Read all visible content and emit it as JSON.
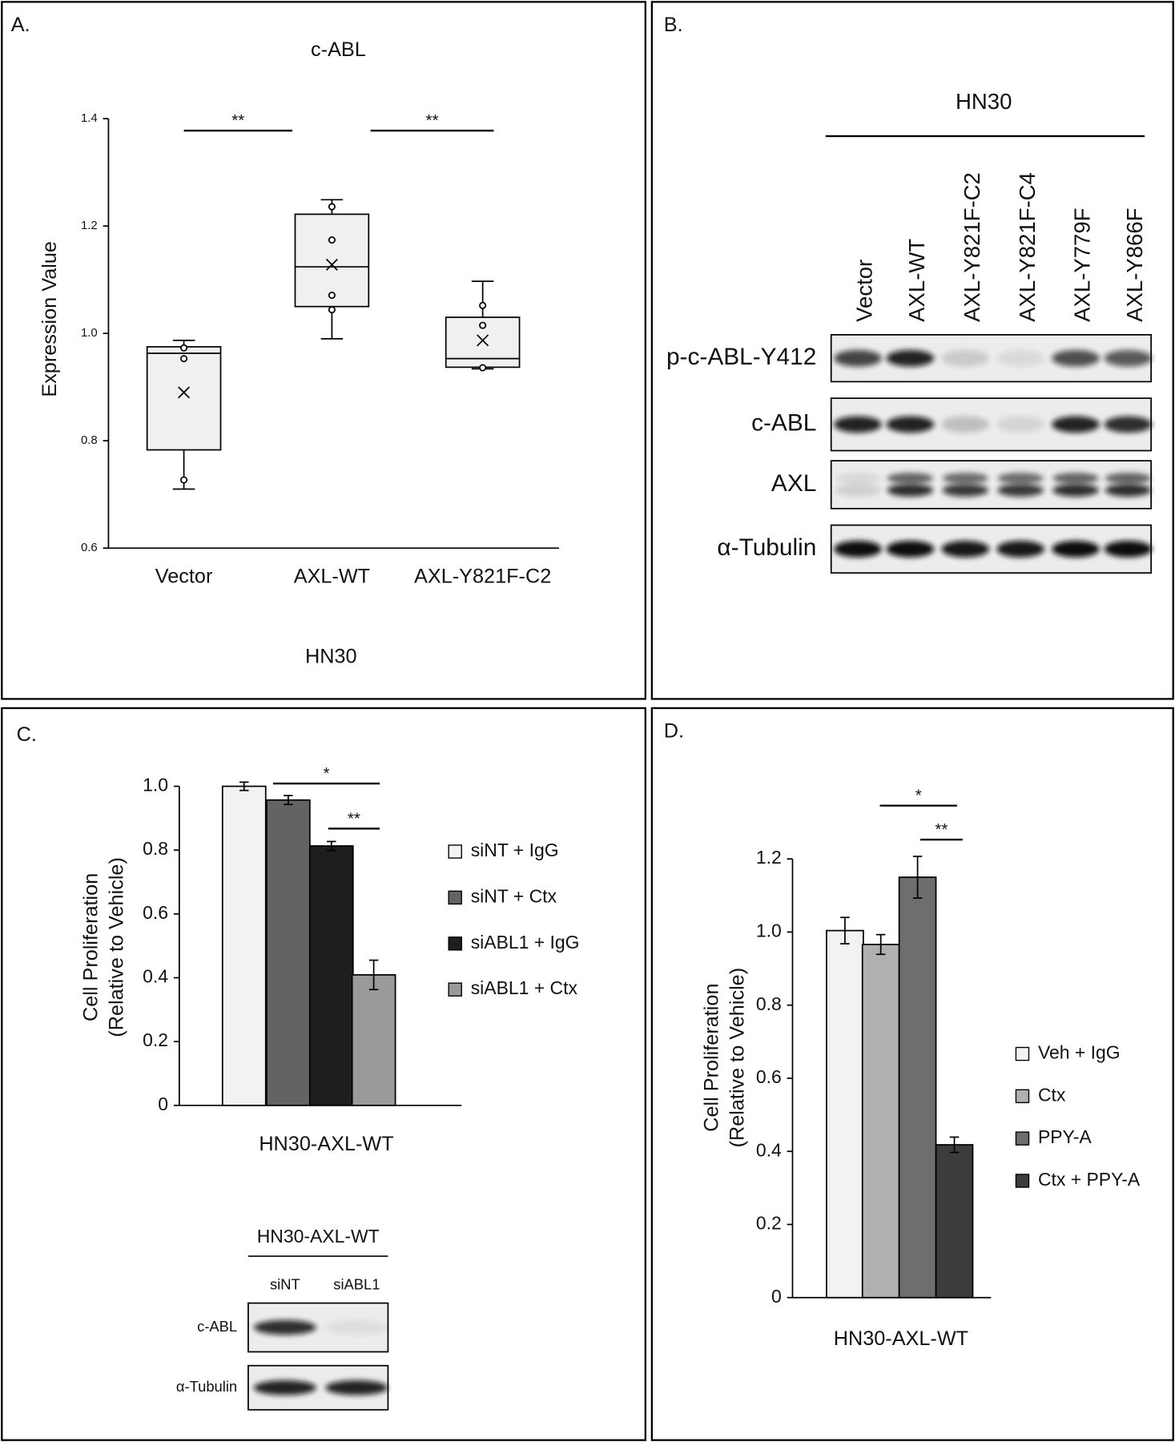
{
  "chart_data": [
    {
      "type": "box",
      "panel": "A.",
      "title": "c-ABL",
      "xlabel": "HN30",
      "ylabel": "Expression Value",
      "categories": [
        "Vector",
        "AXL-WT",
        "AXL-Y821F-C2"
      ],
      "color": "#f0f0f0",
      "boxes": [
        {
          "whisker_low": 0.71,
          "q1": 0.783,
          "median": 0.963,
          "q3": 0.975,
          "whisker_high": 0.987,
          "mean": 0.89,
          "points": [
            0.973,
            0.953,
            0.727
          ]
        },
        {
          "whisker_low": 0.99,
          "q1": 1.05,
          "median": 1.124,
          "q3": 1.222,
          "whisker_high": 1.249,
          "mean": 1.128,
          "points": [
            1.236,
            1.174,
            1.071,
            1.044
          ]
        },
        {
          "whisker_low": 0.934,
          "q1": 0.937,
          "median": 0.953,
          "q3": 1.03,
          "whisker_high": 1.097,
          "mean": 0.987,
          "points": [
            1.052,
            1.015,
            0.936
          ]
        }
      ],
      "ylim": [
        0.6,
        1.4
      ],
      "yticks": [
        0.6,
        0.8,
        {
          "value": 1,
          "label": "1.0"
        },
        1.2,
        1.4
      ],
      "annotations": [
        "**",
        "**"
      ]
    },
    {
      "type": "bar",
      "panel": "C.",
      "xlabel": "HN30-AXL-WT",
      "ylabel": [
        "Cell Proliferation",
        "(Relative to Vehicle)"
      ],
      "series": [
        {
          "name": "siNT + IgG",
          "color": "#f2f2f2",
          "values": [
            1.0
          ],
          "errors": [
            0.013
          ]
        },
        {
          "name": "siNT + Ctx",
          "color": "#636363",
          "values": [
            0.957
          ],
          "errors": [
            0.014
          ]
        },
        {
          "name": "siABL1 + IgG",
          "color": "#1e1e1e",
          "values": [
            0.813
          ],
          "errors": [
            0.014
          ]
        },
        {
          "name": "siABL1 + Ctx",
          "color": "#9a9a9a",
          "values": [
            0.409
          ],
          "errors": [
            0.046
          ]
        }
      ],
      "ylim": [
        0,
        1
      ],
      "yticks": [
        0,
        0.2,
        0.4,
        0.6,
        0.8,
        {
          "value": 1,
          "label": "1.0"
        }
      ],
      "annotations": [
        "*",
        "**"
      ]
    },
    {
      "type": "bar",
      "panel": "D.",
      "xlabel": "HN30-AXL-WT",
      "ylabel": [
        "Cell Proliferation",
        "(Relative to Vehicle)"
      ],
      "series": [
        {
          "name": "Veh + IgG",
          "color": "#f2f2f2",
          "values": [
            1.004
          ],
          "errors": [
            0.036
          ]
        },
        {
          "name": "Ctx",
          "color": "#b0b0b0",
          "values": [
            0.966
          ],
          "errors": [
            0.027
          ]
        },
        {
          "name": "PPY-A",
          "color": "#6e6e6e",
          "values": [
            1.15
          ],
          "errors": [
            0.057
          ]
        },
        {
          "name": "Ctx + PPY-A",
          "color": "#3c3c3c",
          "values": [
            0.418
          ],
          "errors": [
            0.021
          ]
        }
      ],
      "ylim": [
        0,
        1.2
      ],
      "yticks": [
        0,
        0.2,
        0.4,
        0.6,
        0.8,
        {
          "value": 1,
          "label": "1.0"
        },
        1.2
      ],
      "annotations": [
        "*",
        "**"
      ]
    }
  ],
  "blots": [
    {
      "panel": "B.",
      "title": "HN30",
      "lanes": [
        "Vector",
        "AXL-WT",
        "AXL-Y821F-C2",
        "AXL-Y821F-C4",
        "AXL-Y779F",
        "AXL-Y866F"
      ],
      "rows": [
        "p-c-ABL-Y412",
        "c-ABL",
        "AXL",
        "α-Tubulin"
      ]
    },
    {
      "title": "HN30-AXL-WT",
      "lanes": [
        "siNT",
        "siABL1"
      ],
      "rows": [
        "c-ABL",
        "α-Tubulin"
      ]
    }
  ]
}
